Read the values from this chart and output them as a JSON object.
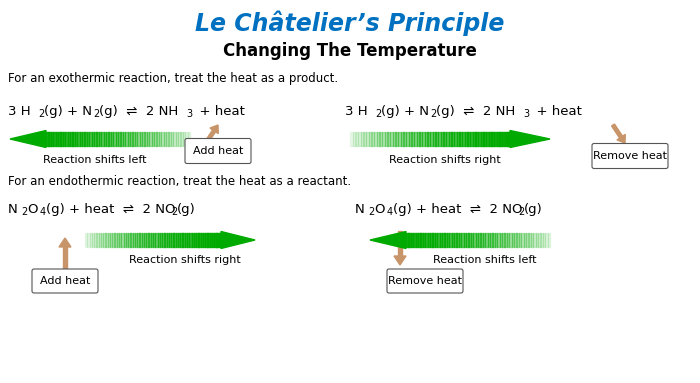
{
  "title": "Le Châtelier’s Principle",
  "subtitle": "Changing The Temperature",
  "title_color": "#0070C0",
  "exo_label": "For an exothermic reaction, treat the heat as a product.",
  "endo_label": "For an endothermic reaction, treat the heat as a reactant.",
  "arrow_green": "#00AA00",
  "arrow_peach": "#C8956A",
  "background": "#FFFFFF",
  "eq_double_arrow": "⇌"
}
